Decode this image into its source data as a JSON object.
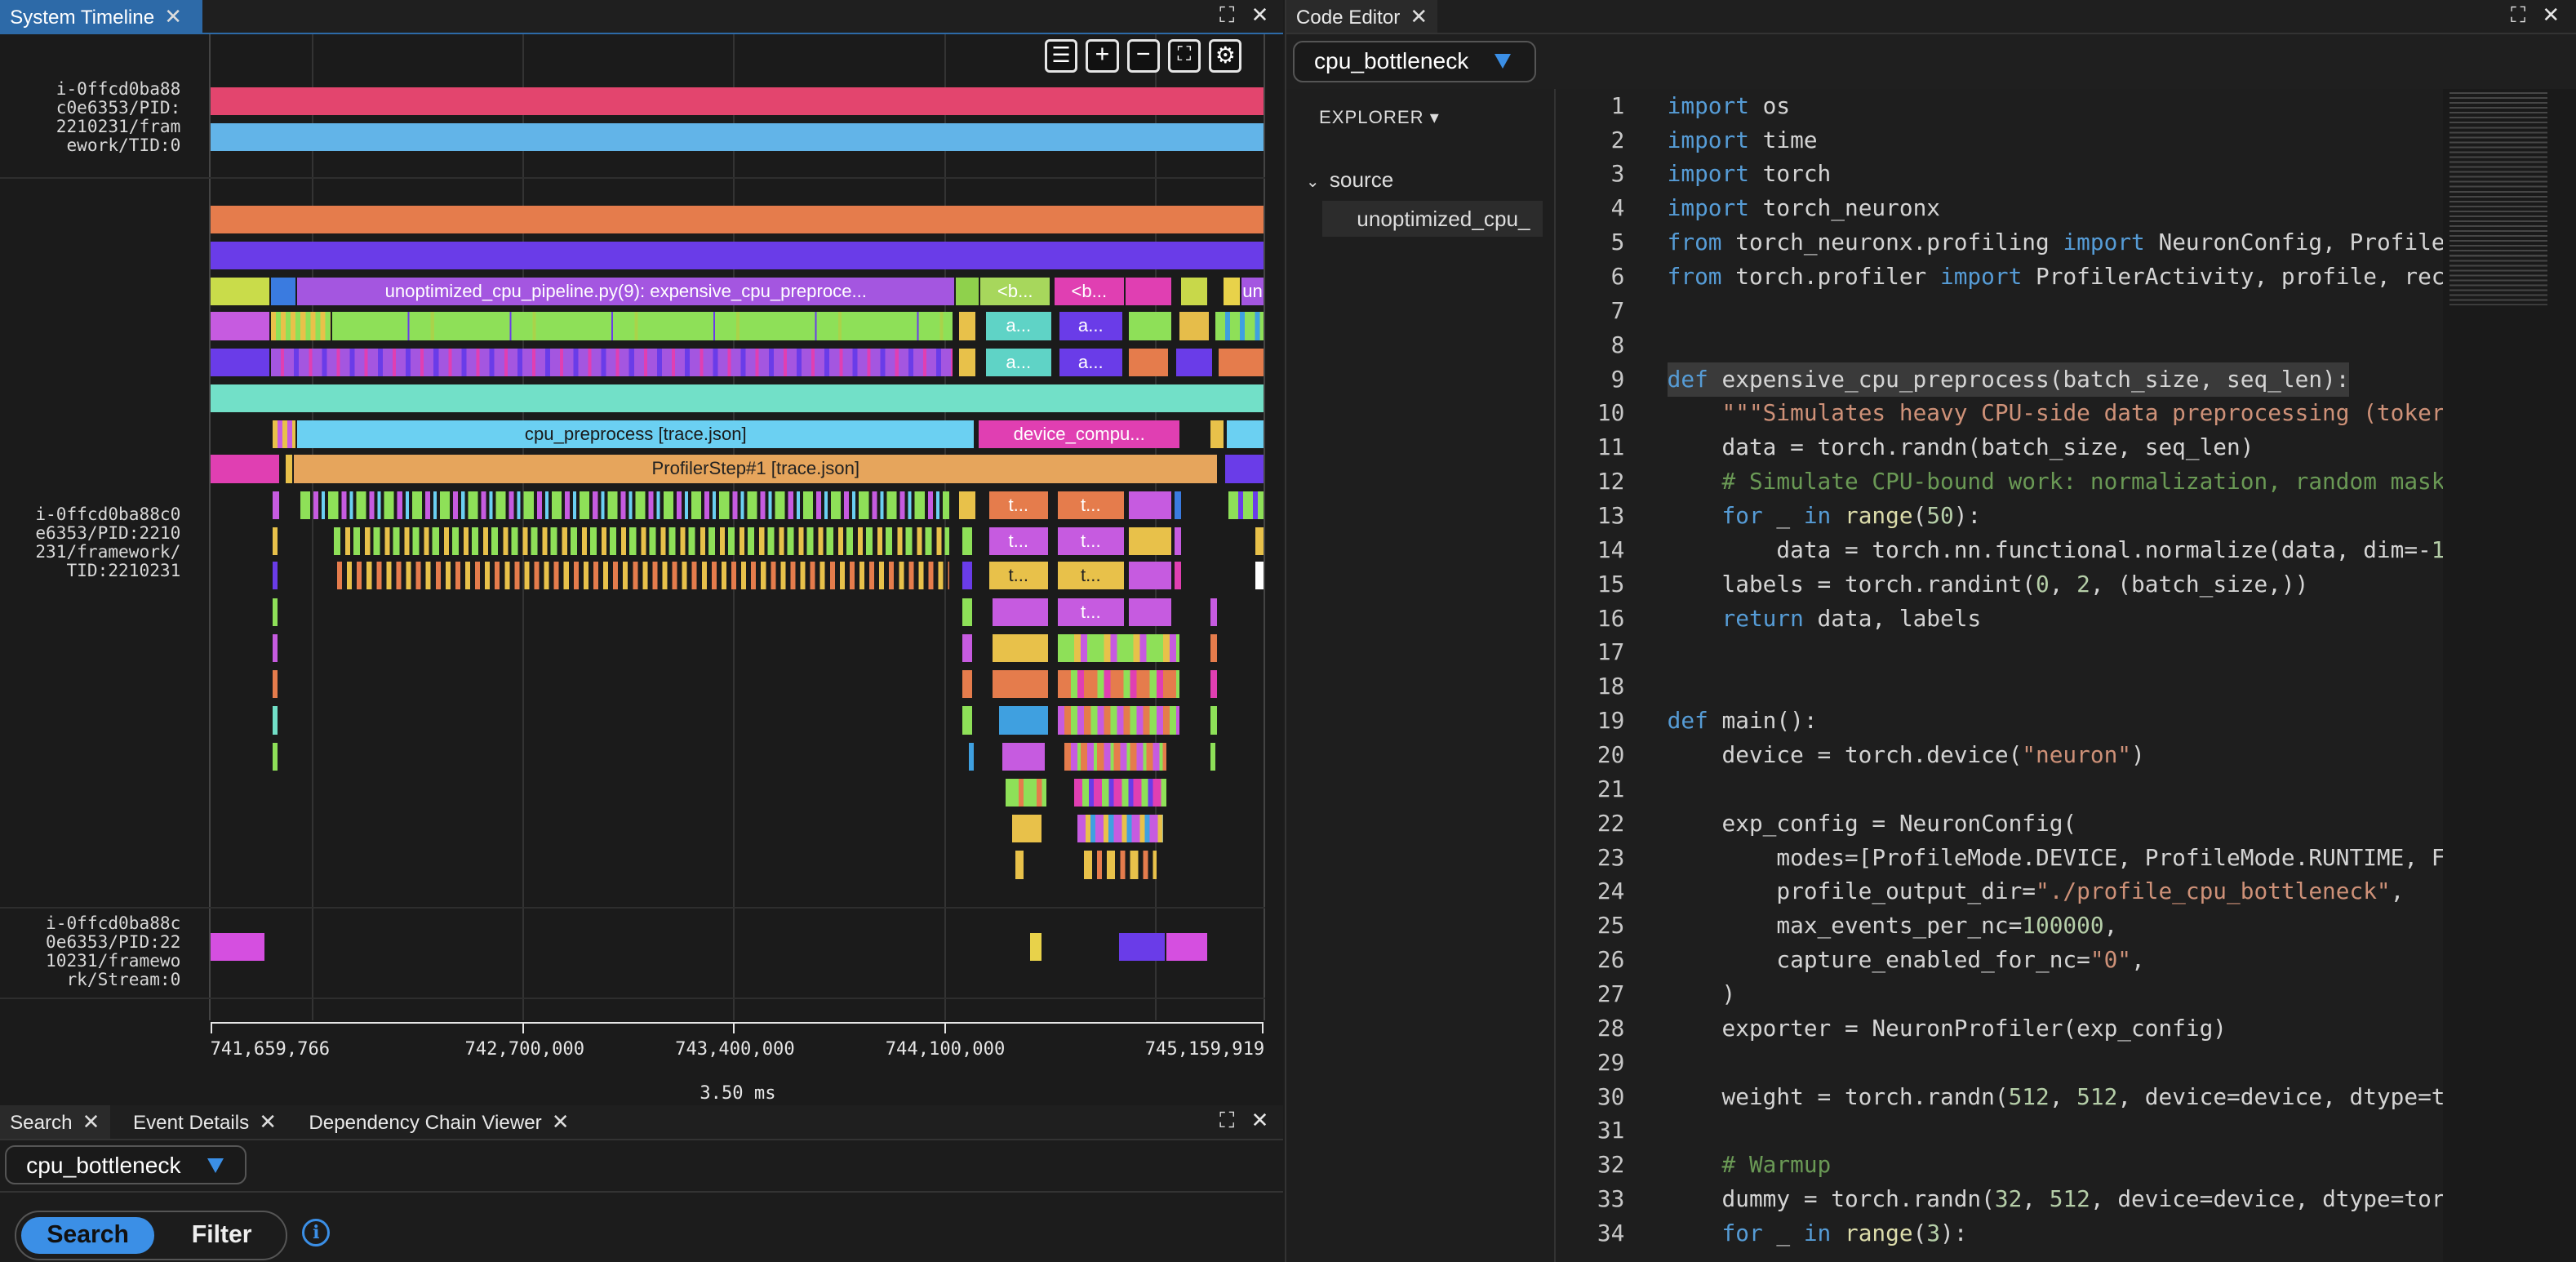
{
  "timeline_panel": {
    "tab_label": "System Timeline",
    "lanes": [
      {
        "label_lines": [
          "i-0ffcd0ba88",
          "c0e6353/PID:",
          "2210231/fram",
          "ework/TID:0"
        ]
      },
      {
        "label_lines": [
          "i-0ffcd0ba88c0",
          "e6353/PID:2210",
          "231/framework/",
          "TID:2210231"
        ]
      },
      {
        "label_lines": [
          "i-0ffcd0ba88c",
          "0e6353/PID:22",
          "10231/framewo",
          "rk/Stream:0"
        ]
      }
    ],
    "labeled_bars": [
      "unoptimized_cpu_pipeline.py(9): expensive_cpu_preproce...",
      "<b...",
      "<b...",
      "un",
      "a...",
      "a...",
      "a...",
      "a...",
      "cpu_preprocess [trace.json]",
      "device_compu...",
      "ProfilerStep#1 [trace.json]",
      "t...",
      "t...",
      "t...",
      "t...",
      "t...",
      "t...",
      "t..."
    ],
    "axis_ticks": [
      "741,659,766",
      "742,700,000",
      "743,400,000",
      "744,100,000",
      "745,159,919"
    ],
    "axis_span": "3.50 ms",
    "toolbar_icons": [
      "list-icon",
      "zoom-in-icon",
      "zoom-out-icon",
      "fit-icon",
      "gear-icon"
    ]
  },
  "bottom_panel": {
    "tabs": [
      "Search",
      "Event Details",
      "Dependency Chain Viewer"
    ],
    "profile_select": "cpu_bottleneck",
    "toggle": {
      "search": "Search",
      "filter": "Filter"
    }
  },
  "editor_panel": {
    "tab_label": "Code Editor",
    "profile_select": "cpu_bottleneck",
    "explorer_title": "EXPLORER ▾",
    "folder": "source",
    "file": "unoptimized_cpu_",
    "lines": [
      "import os",
      "import time",
      "import torch",
      "import torch_neuronx",
      "from torch_neuronx.profiling import NeuronConfig, Profile",
      "from torch.profiler import ProfilerActivity, profile, rec",
      "",
      "",
      "def expensive_cpu_preprocess(batch_size, seq_len):",
      "    \"\"\"Simulates heavy CPU-side data preprocessing (toker",
      "    data = torch.randn(batch_size, seq_len)",
      "    # Simulate CPU-bound work: normalization, random mask",
      "    for _ in range(50):",
      "        data = torch.nn.functional.normalize(data, dim=-1",
      "    labels = torch.randint(0, 2, (batch_size,))",
      "    return data, labels",
      "",
      "",
      "def main():",
      "    device = torch.device(\"neuron\")",
      "",
      "    exp_config = NeuronConfig(",
      "        modes=[ProfileMode.DEVICE, ProfileMode.RUNTIME, F",
      "        profile_output_dir=\"./profile_cpu_bottleneck\",",
      "        max_events_per_nc=100000,",
      "        capture_enabled_for_nc=\"0\",",
      "    )",
      "    exporter = NeuronProfiler(exp_config)",
      "",
      "    weight = torch.randn(512, 512, device=device, dtype=t",
      "",
      "    # Warmup",
      "    dummy = torch.randn(32, 512, device=device, dtype=tor",
      "    for _ in range(3):"
    ]
  }
}
